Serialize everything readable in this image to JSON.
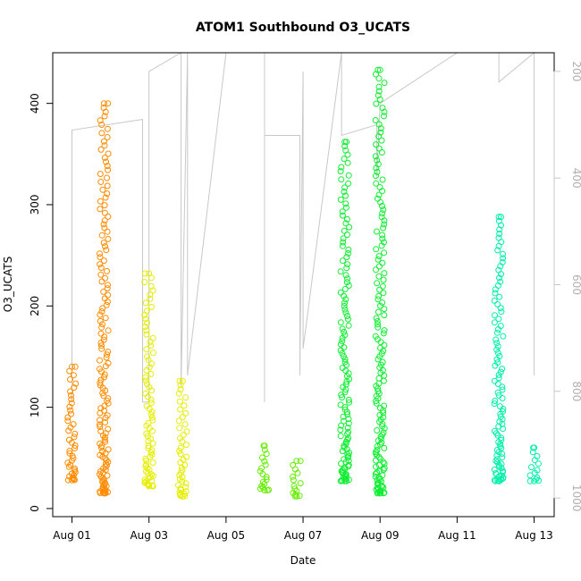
{
  "chart_data": {
    "type": "scatter",
    "title": "ATOM1 Southbound O3_UCATS",
    "xlabel": "Date",
    "ylabel": "O3_UCATS",
    "xlim": [
      "2016-07-31T12:00",
      "2016-08-13T12:30"
    ],
    "ylim": [
      -8,
      450
    ],
    "x_ticks": [
      "Aug 01",
      "Aug 03",
      "Aug 05",
      "Aug 07",
      "Aug 09",
      "Aug 11",
      "Aug 13"
    ],
    "y_ticks": [
      0,
      100,
      200,
      300,
      400
    ],
    "right_axis": {
      "label": "",
      "reversed": true,
      "ylim": [
        1035,
        165
      ],
      "ticks": [
        200,
        400,
        600,
        800,
        1000
      ],
      "color": "#c8c8c8"
    },
    "grid": false,
    "series": [
      {
        "color": "#ff8c00",
        "points": [
          {
            "x": "2016-08-01T00:00",
            "y_min": 28,
            "y_max": 140
          },
          {
            "x": "2016-08-01T20:00",
            "y_min": 15,
            "y_max": 400
          }
        ]
      },
      {
        "color": "#e6ee00",
        "points": [
          {
            "x": "2016-08-03T00:00",
            "y_min": 22,
            "y_max": 232
          },
          {
            "x": "2016-08-03T21:00",
            "y_min": 12,
            "y_max": 126
          }
        ]
      },
      {
        "color": "#66ee00",
        "points": [
          {
            "x": "2016-08-06T00:00",
            "y_min": 18,
            "y_max": 62
          },
          {
            "x": "2016-08-06T20:00",
            "y_min": 12,
            "y_max": 47
          }
        ]
      },
      {
        "color": "#11ee33",
        "points": [
          {
            "x": "2016-08-08T02:00",
            "y_min": 27,
            "y_max": 362
          },
          {
            "x": "2016-08-09T00:00",
            "y_min": 15,
            "y_max": 433
          }
        ]
      },
      {
        "color": "#00f0aa",
        "points": [
          {
            "x": "2016-08-12T02:00",
            "y_min": 27,
            "y_max": 288
          },
          {
            "x": "2016-08-13T00:00",
            "y_min": 27,
            "y_max": 60
          }
        ]
      }
    ],
    "pressure_profile": {
      "color": "#c8c8c8",
      "points": [
        {
          "x": "2016-08-01T00:00",
          "p": 820
        },
        {
          "x": "2016-08-01T00:00",
          "p": 310
        },
        {
          "x": "2016-08-02T20:00",
          "p": 290
        },
        {
          "x": "2016-08-02T20:00",
          "p": 820
        },
        {
          "x": "2016-08-03T00:00",
          "p": 820
        },
        {
          "x": "2016-08-03T00:00",
          "p": 200
        },
        {
          "x": "2016-08-03T20:00",
          "p": 165
        },
        {
          "x": "2016-08-03T20:00",
          "p": 790
        },
        {
          "x": "2016-08-04T00:00",
          "p": 165
        },
        {
          "x": "2016-08-04T00:00",
          "p": 770
        },
        {
          "x": "2016-08-05T00:00",
          "p": 150
        },
        {
          "x": "2016-08-06T00:00",
          "p": 150
        },
        {
          "x": "2016-08-06T00:00",
          "p": 820
        },
        {
          "x": "2016-08-06T00:00",
          "p": 320
        },
        {
          "x": "2016-08-06T22:00",
          "p": 320
        },
        {
          "x": "2016-08-06T22:00",
          "p": 770
        },
        {
          "x": "2016-08-07T00:00",
          "p": 200
        },
        {
          "x": "2016-08-07T00:00",
          "p": 720
        },
        {
          "x": "2016-08-08T00:00",
          "p": 150
        },
        {
          "x": "2016-08-08T00:00",
          "p": 320
        },
        {
          "x": "2016-08-08T22:00",
          "p": 300
        },
        {
          "x": "2016-08-08T22:00",
          "p": 400
        },
        {
          "x": "2016-08-09T00:00",
          "p": 260
        },
        {
          "x": "2016-08-11T00:00",
          "p": 150
        },
        {
          "x": "2016-08-12T02:00",
          "p": 150
        },
        {
          "x": "2016-08-12T02:00",
          "p": 220
        },
        {
          "x": "2016-08-13T00:00",
          "p": 150
        },
        {
          "x": "2016-08-13T00:00",
          "p": 770
        }
      ]
    }
  }
}
